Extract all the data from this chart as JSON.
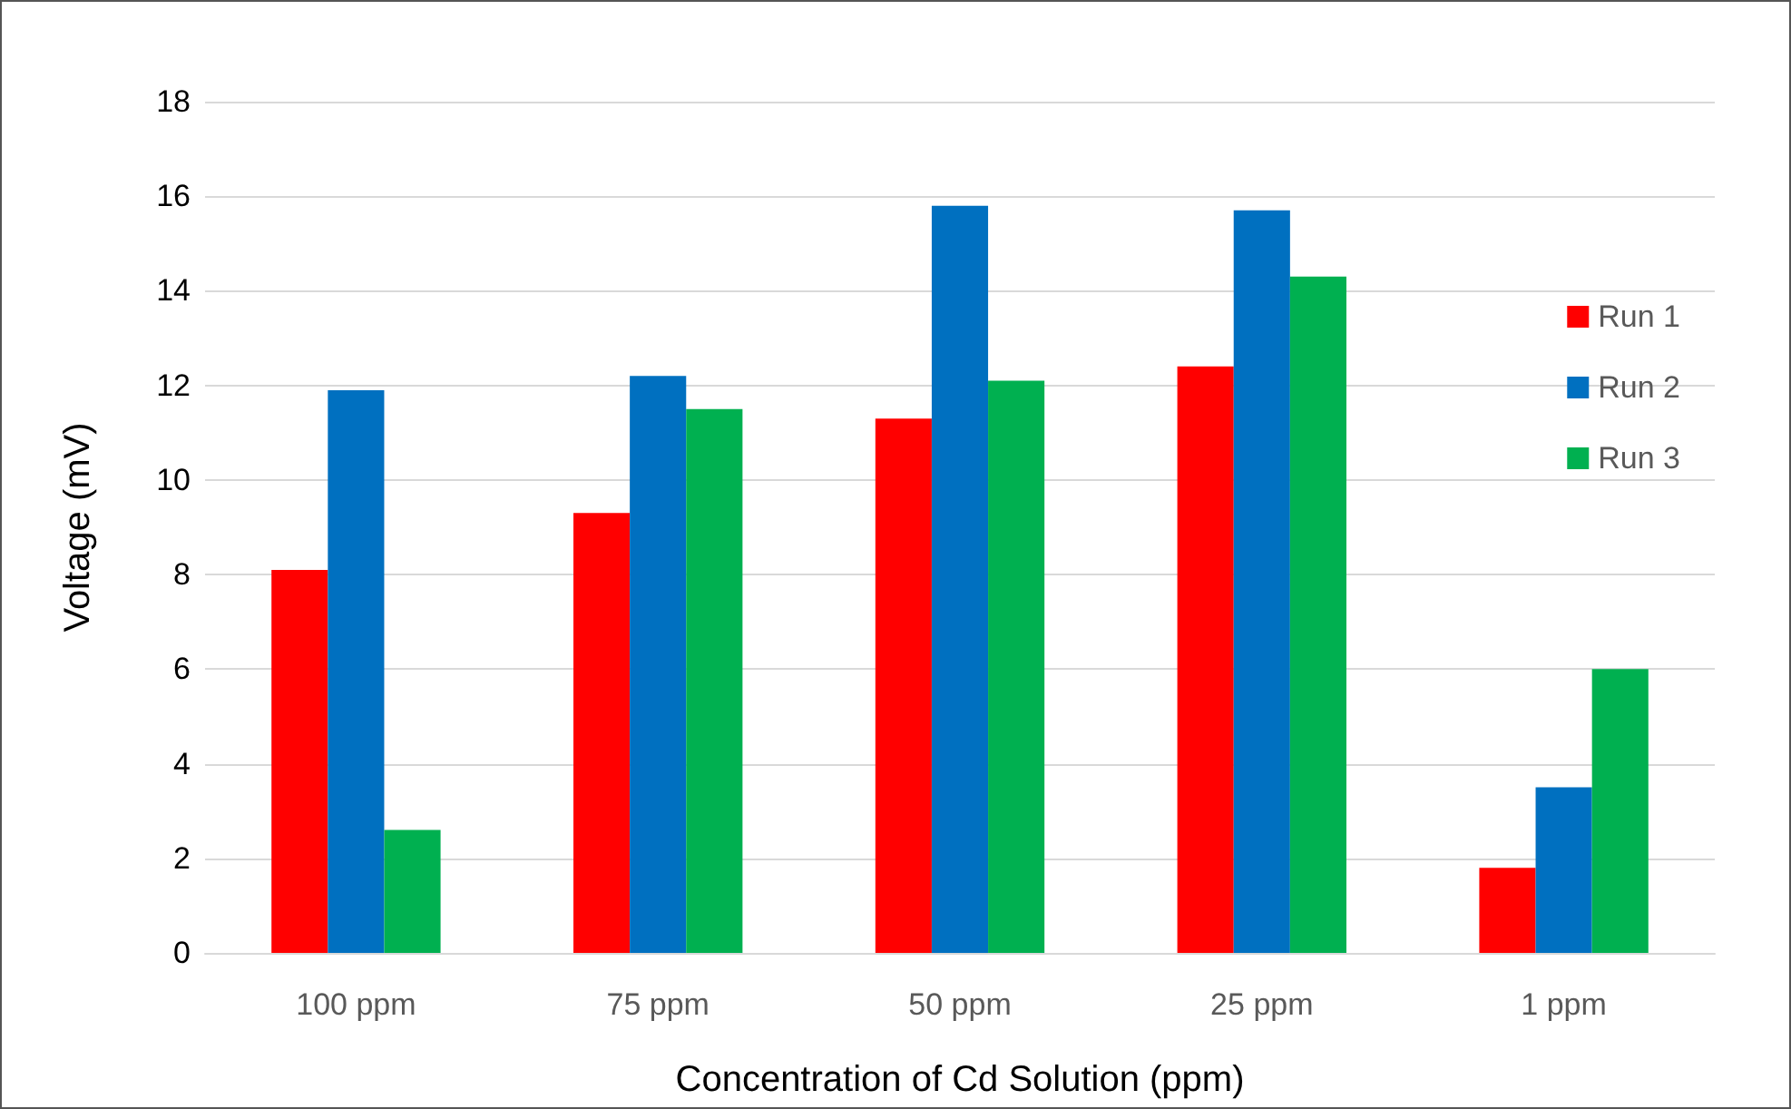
{
  "chart_data": {
    "type": "bar",
    "xlabel": "Concentration of Cd Solution (ppm)",
    "ylabel": "Voltage (mV)",
    "categories": [
      "100 ppm",
      "75 ppm",
      "50 ppm",
      "25 ppm",
      "1 ppm"
    ],
    "series": [
      {
        "name": "Run 1",
        "color": "#ff0000",
        "values": [
          8.1,
          9.3,
          11.3,
          12.4,
          1.8
        ]
      },
      {
        "name": "Run 2",
        "color": "#0070c0",
        "values": [
          11.9,
          12.2,
          15.8,
          15.7,
          3.5
        ]
      },
      {
        "name": "Run 3",
        "color": "#00b050",
        "values": [
          2.6,
          11.5,
          12.1,
          14.3,
          6.0
        ]
      }
    ],
    "ylim": [
      0,
      18
    ],
    "yticks": [
      0,
      2,
      4,
      6,
      8,
      10,
      12,
      14,
      16,
      18
    ],
    "grid": "y",
    "legend": "right"
  }
}
